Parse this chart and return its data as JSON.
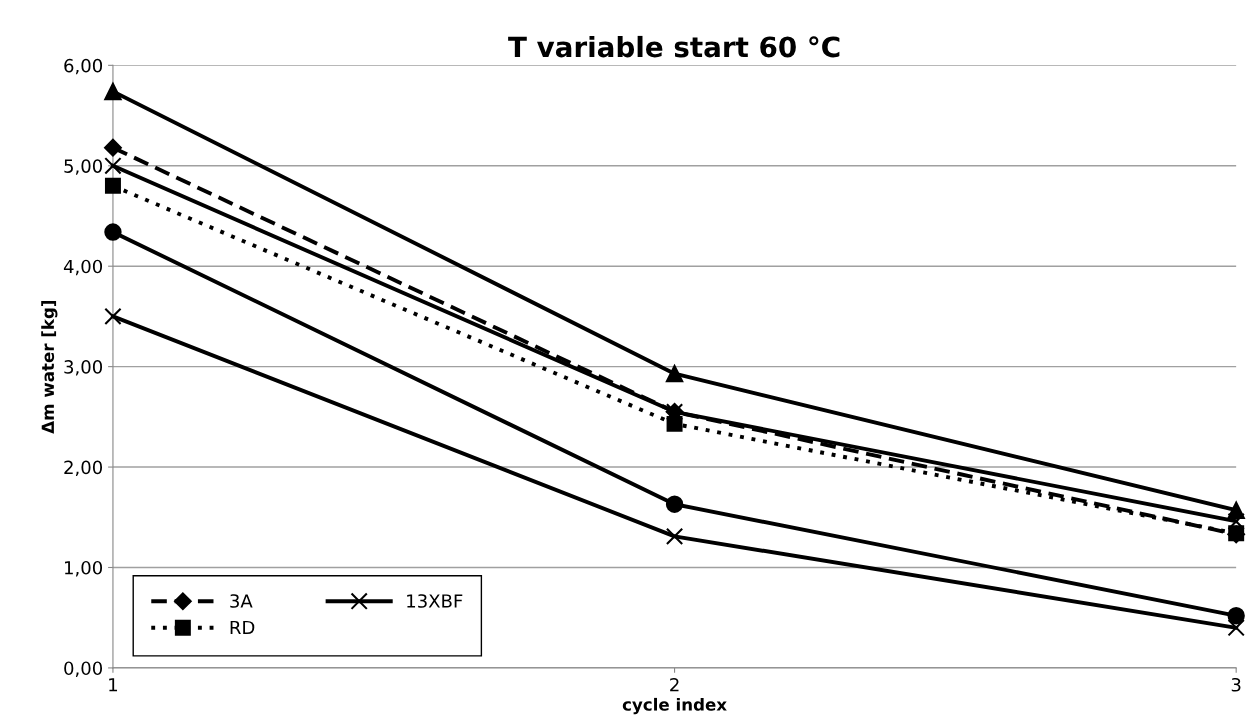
{
  "chart_data": {
    "type": "line",
    "title": "T variable start 60 °C",
    "xlabel": "cycle index",
    "ylabel": "Δm water [kg]",
    "x": [
      1,
      2,
      3
    ],
    "xlim": [
      1,
      3
    ],
    "xticks": [
      1,
      2,
      3
    ],
    "ylim": [
      0,
      6
    ],
    "yticks": [
      {
        "value": 0,
        "label": "0,00"
      },
      {
        "value": 1,
        "label": "1,00"
      },
      {
        "value": 2,
        "label": "2,00"
      },
      {
        "value": 3,
        "label": "3,00"
      },
      {
        "value": 4,
        "label": "4,00"
      },
      {
        "value": 5,
        "label": "5,00"
      },
      {
        "value": 6,
        "label": "6,00"
      }
    ],
    "grid": "y",
    "legend": "bottom left",
    "series": [
      {
        "name": "3A",
        "color": "#000000",
        "marker": "diamond",
        "line_style": "dashed",
        "values": [
          5.18,
          2.55,
          1.33
        ]
      },
      {
        "name": "RD",
        "color": "#000000",
        "marker": "square",
        "line_style": "dotted",
        "values": [
          4.8,
          2.43,
          1.34
        ]
      },
      {
        "color": "#000000",
        "marker": "triangle",
        "line_style": "solid",
        "values": [
          5.74,
          2.93,
          1.57
        ]
      },
      {
        "color": "#000000",
        "marker": "cross",
        "line_style": "solid",
        "values": [
          5.0,
          2.55,
          1.46
        ]
      },
      {
        "name": "13XBF",
        "color": "#000000",
        "marker": "cross",
        "line_style": "solid",
        "values": [
          3.5,
          1.31,
          0.4
        ]
      },
      {
        "color": "#000000",
        "marker": "circle",
        "line_style": "solid",
        "values": [
          4.34,
          1.63,
          0.52
        ]
      }
    ]
  }
}
